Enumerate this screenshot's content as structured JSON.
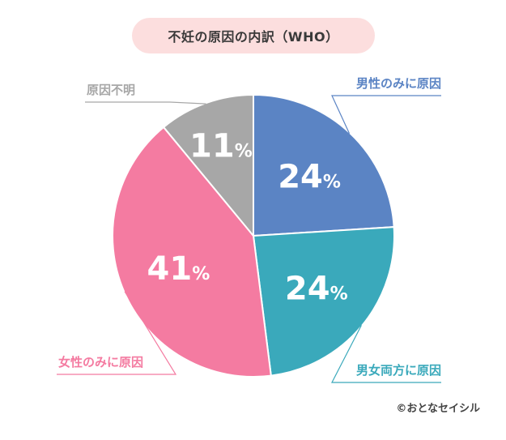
{
  "title": "不妊の原因の内訳（WHO）",
  "copyright": "©おとなセイシル",
  "colors": {
    "title_bg": "#fcdede",
    "male": "#5b84c4",
    "both": "#3aa9bb",
    "female": "#f47ba1",
    "unknown": "#a7a7a7"
  },
  "chart_data": {
    "type": "pie",
    "title": "不妊の原因の内訳（WHO）",
    "slices": [
      {
        "label": "男性のみに原因",
        "value": 24,
        "color": "#5b84c4"
      },
      {
        "label": "男女両方に原因",
        "value": 24,
        "color": "#3aa9bb"
      },
      {
        "label": "女性のみに原因",
        "value": 41,
        "color": "#f47ba1"
      },
      {
        "label": "原因不明",
        "value": 11,
        "color": "#a7a7a7"
      }
    ],
    "unit": "%"
  }
}
